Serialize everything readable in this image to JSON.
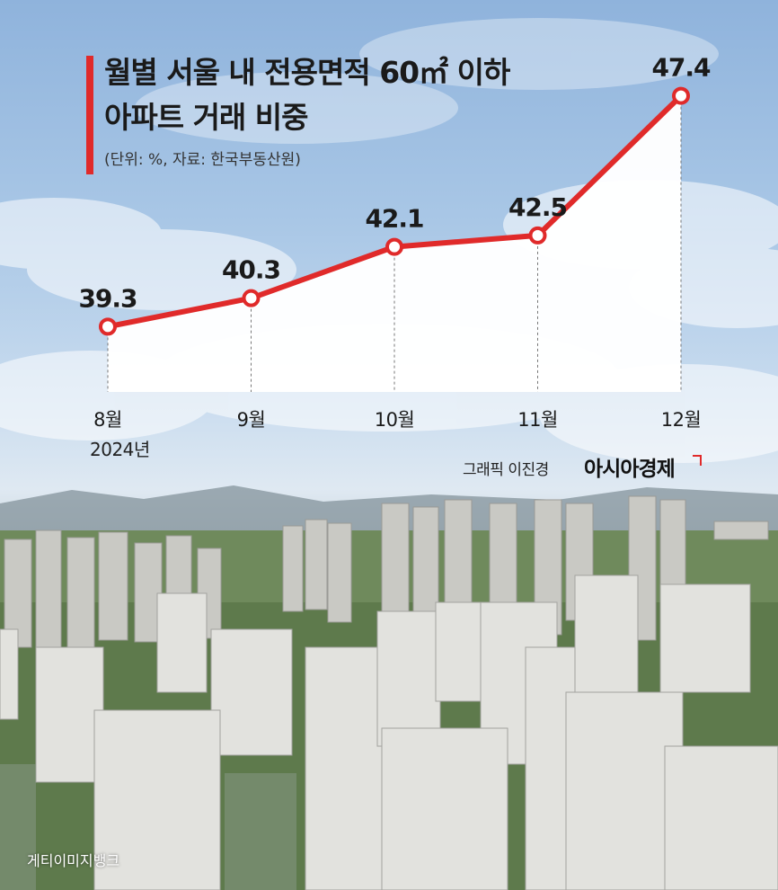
{
  "title_line1": "월별 서울 내 전용면적 60㎡ 이하",
  "title_line2": "아파트 거래 비중",
  "subtitle": "(단위: %, 자료: 한국부동산원)",
  "year_label": "2024년",
  "graphic_credit": "그래픽 이진경",
  "brand": "아시아경제",
  "photo_credit": "게티이미지뱅크",
  "colors": {
    "accent": "#e02a2a",
    "area_fill": "#ffffff"
  },
  "chart_data": {
    "type": "area",
    "title": "월별 서울 내 전용면적 60㎡ 이하 아파트 거래 비중",
    "categories": [
      "8월",
      "9월",
      "10월",
      "11월",
      "12월"
    ],
    "values": [
      39.3,
      40.3,
      42.1,
      42.5,
      47.4
    ],
    "value_labels": [
      "39.3",
      "40.3",
      "42.1",
      "42.5",
      "47.4"
    ],
    "unit": "%",
    "grid": false,
    "legend": "none",
    "vertical_dashed_guides": true
  }
}
